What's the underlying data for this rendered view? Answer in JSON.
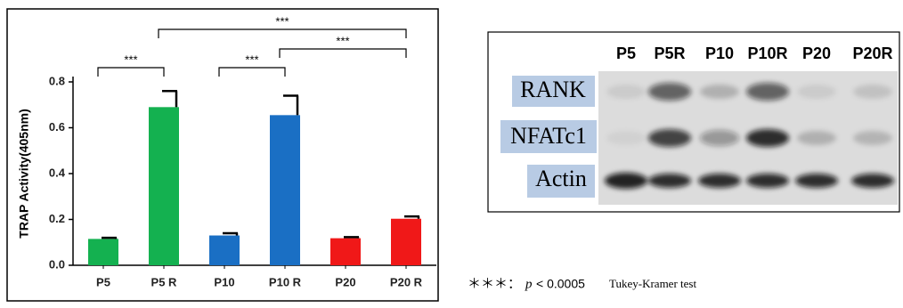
{
  "chart_data": {
    "type": "bar",
    "ylabel": "TRAP Activity(405nm)",
    "categories": [
      "P5",
      "P5 R",
      "P10",
      "P10 R",
      "P20",
      "P20 R"
    ],
    "values": [
      0.115,
      0.69,
      0.13,
      0.655,
      0.118,
      0.203
    ],
    "errors": [
      0.005,
      0.07,
      0.01,
      0.085,
      0.005,
      0.01
    ],
    "colors": [
      "#14b150",
      "#14b150",
      "#1a6fc4",
      "#1a6fc4",
      "#f01818",
      "#f01818"
    ],
    "ylim": [
      0,
      0.8
    ],
    "yticks": [
      {
        "value": 0,
        "label": "0.0"
      },
      0.2,
      0.4,
      0.6,
      0.8
    ],
    "annotations": [
      {
        "from": 0,
        "to": 1,
        "label": "***"
      },
      {
        "from": 2,
        "to": 3,
        "label": "***"
      },
      {
        "from": 3,
        "to": 5,
        "label": "***"
      },
      {
        "from": 1,
        "to": 5,
        "label": "***"
      }
    ]
  },
  "blot": {
    "columns": [
      "P5",
      "P5R",
      "P10",
      "P10R",
      "P20",
      "P20R"
    ],
    "rows": [
      "RANK",
      "NFATc1",
      "Actin"
    ]
  },
  "footnote": {
    "stars": "＊＊＊：",
    "p": "p",
    "threshold": "< 0.0005",
    "test": "Tukey-Kramer test"
  }
}
